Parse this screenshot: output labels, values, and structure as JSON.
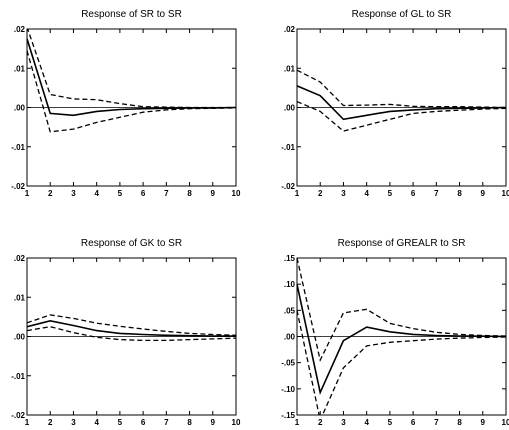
{
  "chart_data": [
    {
      "type": "line",
      "title": "Response of SR to SR",
      "x": [
        1,
        2,
        3,
        4,
        5,
        6,
        7,
        8,
        9,
        10
      ],
      "xticks": [
        "1",
        "2",
        "3",
        "4",
        "5",
        "6",
        "7",
        "8",
        "9",
        "10"
      ],
      "ylim": [
        -0.02,
        0.02
      ],
      "yticks": [
        {
          "value": 0.02,
          "label": ".02"
        },
        {
          "value": 0.01,
          "label": ".01"
        },
        {
          "value": 0.0,
          "label": ".00"
        },
        {
          "value": -0.01,
          "label": "-.01"
        },
        {
          "value": -0.02,
          "label": "-.02"
        }
      ],
      "series": [
        {
          "style": "solid",
          "values": [
            0.0175,
            -0.0015,
            -0.002,
            -0.001,
            -0.0005,
            -0.0003,
            -0.0002,
            -0.0001,
            -0.0001,
            0.0
          ]
        },
        {
          "style": "dashed",
          "values": [
            0.0205,
            0.0033,
            0.0022,
            0.002,
            0.001,
            0.0002,
            0.0001,
            0.0,
            0.0,
            0.0
          ]
        },
        {
          "style": "dashed",
          "values": [
            0.0145,
            -0.0062,
            -0.0055,
            -0.0038,
            -0.0025,
            -0.0012,
            -0.0006,
            -0.0003,
            -0.0002,
            -0.0001
          ]
        }
      ]
    },
    {
      "type": "line",
      "title": "Response of GL to SR",
      "x": [
        1,
        2,
        3,
        4,
        5,
        6,
        7,
        8,
        9,
        10
      ],
      "xticks": [
        "1",
        "2",
        "3",
        "4",
        "5",
        "6",
        "7",
        "8",
        "9",
        "10"
      ],
      "ylim": [
        -0.02,
        0.02
      ],
      "yticks": [
        {
          "value": 0.02,
          "label": ".02"
        },
        {
          "value": 0.01,
          "label": ".01"
        },
        {
          "value": 0.0,
          "label": ".00"
        },
        {
          "value": -0.01,
          "label": "-.01"
        },
        {
          "value": -0.02,
          "label": "-.02"
        }
      ],
      "series": [
        {
          "style": "solid",
          "values": [
            0.0055,
            0.003,
            -0.003,
            -0.002,
            -0.001,
            -0.0006,
            -0.0003,
            -0.0002,
            -0.0001,
            0.0
          ]
        },
        {
          "style": "dashed",
          "values": [
            0.0095,
            0.0065,
            0.0005,
            0.0006,
            0.0008,
            0.0003,
            0.0002,
            0.0002,
            0.0001,
            0.0
          ]
        },
        {
          "style": "dashed",
          "values": [
            0.0015,
            -0.001,
            -0.006,
            -0.0045,
            -0.003,
            -0.0015,
            -0.001,
            -0.0007,
            -0.0004,
            -0.0002
          ]
        }
      ]
    },
    {
      "type": "line",
      "title": "Response of GK to SR",
      "x": [
        1,
        2,
        3,
        4,
        5,
        6,
        7,
        8,
        9,
        10
      ],
      "xticks": [
        "1",
        "2",
        "3",
        "4",
        "5",
        "6",
        "7",
        "8",
        "9",
        "10"
      ],
      "ylim": [
        -0.02,
        0.02
      ],
      "yticks": [
        {
          "value": 0.02,
          "label": ".02"
        },
        {
          "value": 0.01,
          "label": ".01"
        },
        {
          "value": 0.0,
          "label": ".00"
        },
        {
          "value": -0.01,
          "label": "-.01"
        },
        {
          "value": -0.02,
          "label": "-.02"
        }
      ],
      "series": [
        {
          "style": "solid",
          "values": [
            0.0025,
            0.004,
            0.0028,
            0.0015,
            0.0008,
            0.0005,
            0.0003,
            0.0002,
            0.0001,
            0.0001
          ]
        },
        {
          "style": "dashed",
          "values": [
            0.0035,
            0.0055,
            0.0046,
            0.0034,
            0.0026,
            0.0019,
            0.0013,
            0.0008,
            0.0005,
            0.0003
          ]
        },
        {
          "style": "dashed",
          "values": [
            0.0015,
            0.0025,
            0.001,
            -0.0002,
            -0.0008,
            -0.001,
            -0.001,
            -0.0008,
            -0.0006,
            -0.0004
          ]
        }
      ]
    },
    {
      "type": "line",
      "title": "Response of GREALR to SR",
      "x": [
        1,
        2,
        3,
        4,
        5,
        6,
        7,
        8,
        9,
        10
      ],
      "xticks": [
        "1",
        "2",
        "3",
        "4",
        "5",
        "6",
        "7",
        "8",
        "9",
        "10"
      ],
      "ylim": [
        -0.15,
        0.15
      ],
      "yticks": [
        {
          "value": 0.15,
          "label": ".15"
        },
        {
          "value": 0.1,
          "label": ".10"
        },
        {
          "value": 0.05,
          "label": ".05"
        },
        {
          "value": 0.0,
          "label": ".00"
        },
        {
          "value": -0.05,
          "label": "-.05"
        },
        {
          "value": -0.1,
          "label": "-.10"
        },
        {
          "value": -0.15,
          "label": "-.15"
        }
      ],
      "series": [
        {
          "style": "solid",
          "values": [
            0.1,
            -0.107,
            -0.008,
            0.018,
            0.009,
            0.004,
            0.002,
            0.001,
            0.0005,
            0.0
          ]
        },
        {
          "style": "dashed",
          "values": [
            0.15,
            -0.045,
            0.045,
            0.052,
            0.025,
            0.015,
            0.008,
            0.004,
            0.002,
            0.001
          ]
        },
        {
          "style": "dashed",
          "values": [
            0.05,
            -0.16,
            -0.06,
            -0.018,
            -0.011,
            -0.008,
            -0.005,
            -0.003,
            -0.002,
            -0.001
          ]
        }
      ]
    }
  ]
}
